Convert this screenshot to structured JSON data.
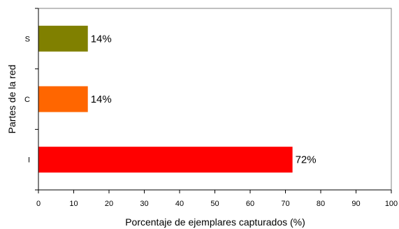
{
  "chart_data": {
    "type": "bar",
    "orientation": "horizontal",
    "title": "",
    "xlabel": "Porcentaje de ejemplares capturados (%)",
    "ylabel": "Partes de la red",
    "xlim": [
      0,
      100
    ],
    "xticks": [
      0,
      10,
      20,
      30,
      40,
      50,
      60,
      70,
      80,
      90,
      100
    ],
    "grid": false,
    "legend": "none",
    "categories": [
      "S",
      "C",
      "I"
    ],
    "values": [
      14,
      14,
      72
    ],
    "data_labels": [
      "14%",
      "14%",
      "72%"
    ],
    "colors": [
      "#808000",
      "#ff6600",
      "#ff0000"
    ]
  }
}
